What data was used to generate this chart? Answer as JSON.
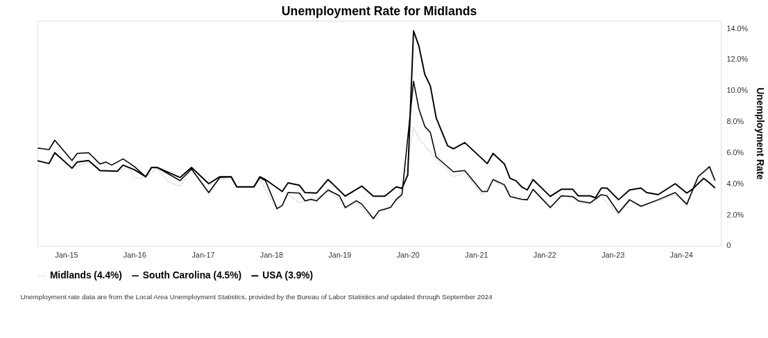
{
  "chart_data": {
    "type": "line",
    "title": "Unemployment Rate for Midlands",
    "ylabel": "Unemployment Rate",
    "xlim": [
      "2014-08",
      "2024-08"
    ],
    "xticks": [
      {
        "value": "2015-01",
        "label": "Jan-15"
      },
      {
        "value": "2016-01",
        "label": "Jan-16"
      },
      {
        "value": "2017-01",
        "label": "Jan-17"
      },
      {
        "value": "2018-01",
        "label": "Jan-18"
      },
      {
        "value": "2019-01",
        "label": "Jan-19"
      },
      {
        "value": "2020-01",
        "label": "Jan-20"
      },
      {
        "value": "2021-01",
        "label": "Jan-21"
      },
      {
        "value": "2022-01",
        "label": "Jan-22"
      },
      {
        "value": "2023-01",
        "label": "Jan-23"
      },
      {
        "value": "2024-01",
        "label": "Jan-24"
      }
    ],
    "ylim": [
      0,
      14.5
    ],
    "yticks": [
      {
        "value": 0,
        "label": "0"
      },
      {
        "value": 2,
        "label": "2.0%"
      },
      {
        "value": 4,
        "label": "4.0%"
      },
      {
        "value": 6,
        "label": "6.0%"
      },
      {
        "value": 8,
        "label": "8.0%"
      },
      {
        "value": 10,
        "label": "10.0%"
      },
      {
        "value": 12,
        "label": "12.0%"
      },
      {
        "value": 14,
        "label": "14.0%"
      }
    ],
    "grid": false,
    "legend": "bottom",
    "series": [
      {
        "name": "Midlands (4.4%)",
        "color": "#9a9a9a",
        "line_style": "dotted",
        "x": [
          "2014-08",
          "2014-10",
          "2014-11",
          "2015-02",
          "2015-05",
          "2015-07",
          "2015-10",
          "2015-12",
          "2016-01",
          "2016-03",
          "2016-05",
          "2016-07",
          "2016-09",
          "2016-11",
          "2017-02",
          "2017-04",
          "2017-06",
          "2017-07",
          "2017-10",
          "2017-11",
          "2018-02",
          "2018-03",
          "2018-04",
          "2018-06",
          "2018-08",
          "2018-11",
          "2019-01",
          "2019-02",
          "2019-04",
          "2019-07",
          "2019-09",
          "2019-11",
          "2019-12",
          "2020-02",
          "2020-03",
          "2020-04",
          "2020-05",
          "2020-07",
          "2020-08",
          "2020-09",
          "2020-11",
          "2021-02",
          "2021-04",
          "2021-06",
          "2021-08",
          "2021-10",
          "2021-11",
          "2022-02",
          "2022-04",
          "2022-06",
          "2022-07",
          "2022-09",
          "2022-11",
          "2023-02",
          "2023-04",
          "2023-06",
          "2023-09",
          "2023-12",
          "2024-02",
          "2024-04",
          "2024-06",
          "2024-07"
        ],
        "values": [
          5.5,
          5.3,
          6.0,
          5.0,
          5.4,
          4.8,
          4.8,
          5.05,
          4.35,
          4.4,
          5.0,
          4.1,
          3.85,
          4.9,
          3.3,
          4.3,
          4.4,
          3.8,
          3.8,
          4.3,
          2.3,
          2.6,
          3.3,
          2.8,
          2.9,
          3.5,
          3.0,
          2.4,
          2.8,
          1.7,
          2.3,
          2.9,
          3.2,
          7.6,
          6.9,
          6.45,
          6.0,
          5.2,
          4.85,
          4.45,
          4.7,
          3.3,
          4.2,
          3.8,
          3.1,
          2.9,
          3.6,
          2.4,
          3.2,
          3.1,
          2.8,
          2.7,
          3.2,
          2.0,
          2.9,
          2.5,
          2.9,
          3.3,
          2.6,
          4.3,
          5.0,
          4.1
        ]
      },
      {
        "name": "South Carolina (4.5%)",
        "color": "#000000",
        "line_style": "solid",
        "x": [
          "2014-08",
          "2014-10",
          "2014-11",
          "2015-02",
          "2015-03",
          "2015-05",
          "2015-07",
          "2015-08",
          "2015-09",
          "2015-11",
          "2016-01",
          "2016-03",
          "2016-04",
          "2016-05",
          "2016-09",
          "2016-11",
          "2017-02",
          "2017-04",
          "2017-06",
          "2017-07",
          "2017-10",
          "2017-11",
          "2017-12",
          "2018-02",
          "2018-03",
          "2018-04",
          "2018-06",
          "2018-07",
          "2018-08",
          "2018-09",
          "2018-11",
          "2019-01",
          "2019-02",
          "2019-04",
          "2019-05",
          "2019-07",
          "2019-08",
          "2019-10",
          "2019-11",
          "2019-12",
          "2020-02",
          "2020-03",
          "2020-04",
          "2020-05",
          "2020-06",
          "2020-09",
          "2020-11",
          "2021-02",
          "2021-03",
          "2021-04",
          "2021-06",
          "2021-07",
          "2021-09",
          "2021-10",
          "2021-11",
          "2022-02",
          "2022-04",
          "2022-06",
          "2022-07",
          "2022-09",
          "2022-11",
          "2022-12",
          "2023-02",
          "2023-04",
          "2023-06",
          "2023-09",
          "2023-12",
          "2024-02",
          "2024-04",
          "2024-06",
          "2024-07"
        ],
        "values": [
          6.3,
          6.2,
          6.8,
          5.5,
          5.95,
          6.0,
          5.27,
          5.4,
          5.2,
          5.6,
          5.1,
          4.45,
          5.05,
          5.05,
          4.2,
          4.95,
          3.43,
          4.4,
          4.45,
          3.8,
          3.8,
          4.4,
          4.2,
          2.4,
          2.6,
          3.43,
          3.4,
          2.9,
          3.0,
          2.9,
          3.6,
          3.22,
          2.47,
          2.9,
          2.68,
          1.76,
          2.26,
          2.47,
          3.0,
          3.3,
          10.6,
          8.8,
          7.7,
          7.3,
          5.73,
          4.77,
          4.85,
          3.5,
          3.5,
          4.27,
          3.93,
          3.18,
          3.0,
          2.97,
          3.64,
          2.47,
          3.22,
          3.18,
          2.9,
          2.76,
          3.3,
          3.22,
          2.13,
          2.97,
          2.55,
          2.97,
          3.43,
          2.68,
          4.45,
          5.1,
          4.2
        ]
      },
      {
        "name": "USA (3.9%)",
        "color": "#000000",
        "line_style": "solid",
        "x": [
          "2014-08",
          "2014-10",
          "2014-11",
          "2015-02",
          "2015-03",
          "2015-05",
          "2015-07",
          "2015-10",
          "2015-11",
          "2016-01",
          "2016-03",
          "2016-04",
          "2016-05",
          "2016-09",
          "2016-11",
          "2017-02",
          "2017-04",
          "2017-06",
          "2017-07",
          "2017-10",
          "2017-11",
          "2017-12",
          "2018-03",
          "2018-04",
          "2018-06",
          "2018-07",
          "2018-09",
          "2018-11",
          "2018-12",
          "2019-02",
          "2019-05",
          "2019-07",
          "2019-09",
          "2019-11",
          "2019-12",
          "2020-01",
          "2020-02",
          "2020-03",
          "2020-04",
          "2020-05",
          "2020-06",
          "2020-08",
          "2020-09",
          "2020-11",
          "2021-03",
          "2021-04",
          "2021-06",
          "2021-07",
          "2021-08",
          "2021-09",
          "2021-10",
          "2021-11",
          "2022-02",
          "2022-04",
          "2022-06",
          "2022-07",
          "2022-09",
          "2022-10",
          "2022-11",
          "2022-12",
          "2023-02",
          "2023-04",
          "2023-06",
          "2023-07",
          "2023-09",
          "2023-12",
          "2024-02",
          "2024-03",
          "2024-05",
          "2024-06",
          "2024-07"
        ],
        "values": [
          5.48,
          5.3,
          6.0,
          5.0,
          5.4,
          5.5,
          4.85,
          4.8,
          5.2,
          4.9,
          4.45,
          5.05,
          5.05,
          4.4,
          5.05,
          4.0,
          4.45,
          4.45,
          3.8,
          3.8,
          4.45,
          4.27,
          3.5,
          4.06,
          3.9,
          3.43,
          3.4,
          4.27,
          3.93,
          3.2,
          3.85,
          3.2,
          3.2,
          3.8,
          3.7,
          4.56,
          13.85,
          12.85,
          11.05,
          10.3,
          8.25,
          6.45,
          6.25,
          6.65,
          5.3,
          5.95,
          5.27,
          4.35,
          4.2,
          3.8,
          3.6,
          4.27,
          3.18,
          3.64,
          3.64,
          3.22,
          3.22,
          3.1,
          3.72,
          3.72,
          2.97,
          3.6,
          3.72,
          3.43,
          3.3,
          4.0,
          3.4,
          3.64,
          4.35,
          4.06,
          3.72
        ]
      }
    ],
    "annotations": [
      "Unemployment rate data are from the Local Area Unemployment Statistics, provided by the Bureau of Labor Statistics and updated through September 2024"
    ]
  }
}
